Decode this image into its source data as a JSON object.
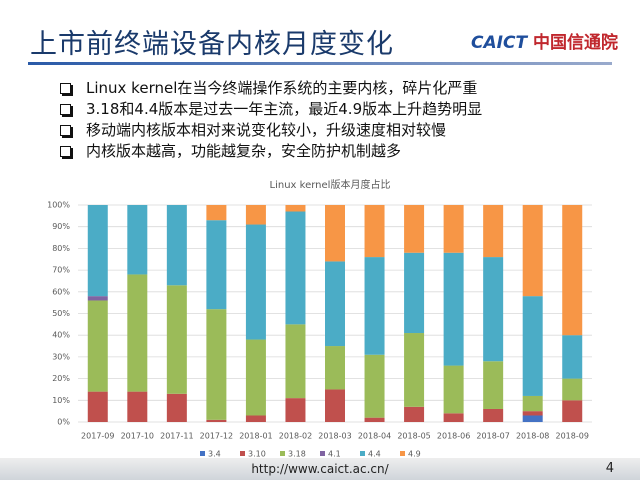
{
  "header": {
    "title": "上市前终端设备内核月度变化",
    "logo_prefix": "CAICT",
    "logo_text": "中国信通院"
  },
  "bullets": [
    "Linux kernel在当今终端操作系统的主要内核，碎片化严重",
    "3.18和4.4版本是过去一年主流，最近4.9版本上升趋势明显",
    "移动端内核版本相对来说变化较小，升级速度相对较慢",
    "内核版本越高，功能越复杂，安全防护机制越多"
  ],
  "footer": {
    "url": "http://www.caict.ac.cn/",
    "page": "4"
  },
  "chart_data": {
    "type": "stacked_bar",
    "title": "Linux kernel版本月度占比",
    "categories": [
      "2017-09",
      "2017-10",
      "2017-11",
      "2017-12",
      "2018-01",
      "2018-02",
      "2018-03",
      "2018-04",
      "2018-05",
      "2018-06",
      "2018-07",
      "2018-08",
      "2018-09"
    ],
    "series": [
      {
        "name": "3.4",
        "color": "#4472c4",
        "values": [
          0,
          0,
          0,
          0,
          0,
          0,
          0,
          0,
          0,
          0,
          0,
          3,
          0
        ]
      },
      {
        "name": "3.10",
        "color": "#c0504d",
        "values": [
          14,
          14,
          13,
          1,
          3,
          11,
          15,
          2,
          7,
          4,
          6,
          2,
          10
        ]
      },
      {
        "name": "3.18",
        "color": "#9bbb59",
        "values": [
          42,
          54,
          50,
          51,
          35,
          34,
          20,
          29,
          34,
          22,
          22,
          7,
          10
        ]
      },
      {
        "name": "4.1",
        "color": "#8064a2",
        "values": [
          2,
          0,
          0,
          0,
          0,
          0,
          0,
          0,
          0,
          0,
          0,
          0,
          0
        ]
      },
      {
        "name": "4.4",
        "color": "#4bacc6",
        "values": [
          42,
          32,
          37,
          41,
          53,
          52,
          39,
          45,
          37,
          52,
          48,
          46,
          20
        ]
      },
      {
        "name": "4.9",
        "color": "#f79646",
        "values": [
          0,
          0,
          0,
          7,
          9,
          3,
          26,
          24,
          22,
          22,
          24,
          42,
          60
        ]
      }
    ],
    "ylim": [
      0,
      100
    ],
    "yticks": [
      {
        "value": 0,
        "label": "0%"
      },
      {
        "value": 10,
        "label": "10%"
      },
      {
        "value": 20,
        "label": "20%"
      },
      {
        "value": 30,
        "label": "30%"
      },
      {
        "value": 40,
        "label": "40%"
      },
      {
        "value": 50,
        "label": "50%"
      },
      {
        "value": 60,
        "label": "60%"
      },
      {
        "value": 70,
        "label": "70%"
      },
      {
        "value": 80,
        "label": "80%"
      },
      {
        "value": 90,
        "label": "90%"
      },
      {
        "value": 100,
        "label": "100%"
      }
    ],
    "grid": true,
    "legend": "bottom"
  }
}
